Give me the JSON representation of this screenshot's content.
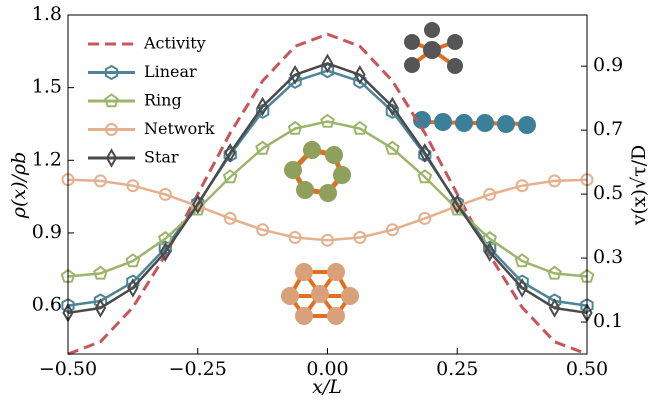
{
  "chart_data": {
    "type": "line",
    "x": [
      -0.5,
      -0.4375,
      -0.375,
      -0.3125,
      -0.25,
      -0.1875,
      -0.125,
      -0.0625,
      0,
      0.0625,
      0.125,
      0.1875,
      0.25,
      0.3125,
      0.375,
      0.4375,
      0.5
    ],
    "series": [
      {
        "name": "Activity",
        "color": "#c9545a",
        "linestyle": "dashed",
        "axis": "y2",
        "values": [
          0,
          0.038,
          0.146,
          0.309,
          0.5,
          0.691,
          0.854,
          0.962,
          1,
          0.962,
          0.854,
          0.691,
          0.5,
          0.309,
          0.146,
          0.038,
          0
        ]
      },
      {
        "name": "Linear",
        "color": "#4d8597",
        "marker": "hexagon",
        "values": [
          0.6,
          0.619,
          0.697,
          0.837,
          1.022,
          1.223,
          1.402,
          1.526,
          1.57,
          1.526,
          1.402,
          1.223,
          1.022,
          0.837,
          0.697,
          0.619,
          0.6
        ]
      },
      {
        "name": "Ring",
        "color": "#9cb56a",
        "marker": "pentagon",
        "values": [
          0.72,
          0.733,
          0.784,
          0.876,
          0.998,
          1.131,
          1.249,
          1.331,
          1.36,
          1.331,
          1.249,
          1.131,
          0.998,
          0.876,
          0.784,
          0.733,
          0.72
        ]
      },
      {
        "name": "Network",
        "color": "#e5b08e",
        "marker": "circle",
        "values": [
          1.12,
          1.115,
          1.095,
          1.059,
          1.011,
          0.96,
          0.913,
          0.881,
          0.87,
          0.881,
          0.913,
          0.96,
          1.011,
          1.059,
          1.095,
          1.115,
          1.12
        ]
      },
      {
        "name": "Star",
        "color": "#4a4a4a",
        "marker": "diamond",
        "values": [
          0.57,
          0.59,
          0.673,
          0.821,
          1.018,
          1.231,
          1.422,
          1.553,
          1.6,
          1.553,
          1.422,
          1.231,
          1.018,
          0.821,
          0.673,
          0.59,
          0.57
        ]
      }
    ],
    "xlabel": "x/L",
    "ylabel": "ρ(x)/ρb",
    "y2label": "v(x)√τ/D",
    "xlim": [
      -0.5,
      0.5
    ],
    "xticks": [
      {
        "value": -0.5,
        "label": "−0.50"
      },
      {
        "value": -0.25,
        "label": "−0.25"
      },
      {
        "value": 0,
        "label": "0.00"
      },
      {
        "value": 0.25,
        "label": "0.25"
      },
      {
        "value": 0.5,
        "label": "0.50"
      }
    ],
    "ylim": [
      0.4,
      1.8
    ],
    "yticks": [
      0.6,
      0.9,
      1.2,
      1.5,
      1.8
    ],
    "y2lim": [
      0,
      1.06
    ],
    "y2ticks": [
      0.1,
      0.3,
      0.5,
      0.7,
      0.9
    ],
    "legend": "upper left",
    "grid": false
  }
}
